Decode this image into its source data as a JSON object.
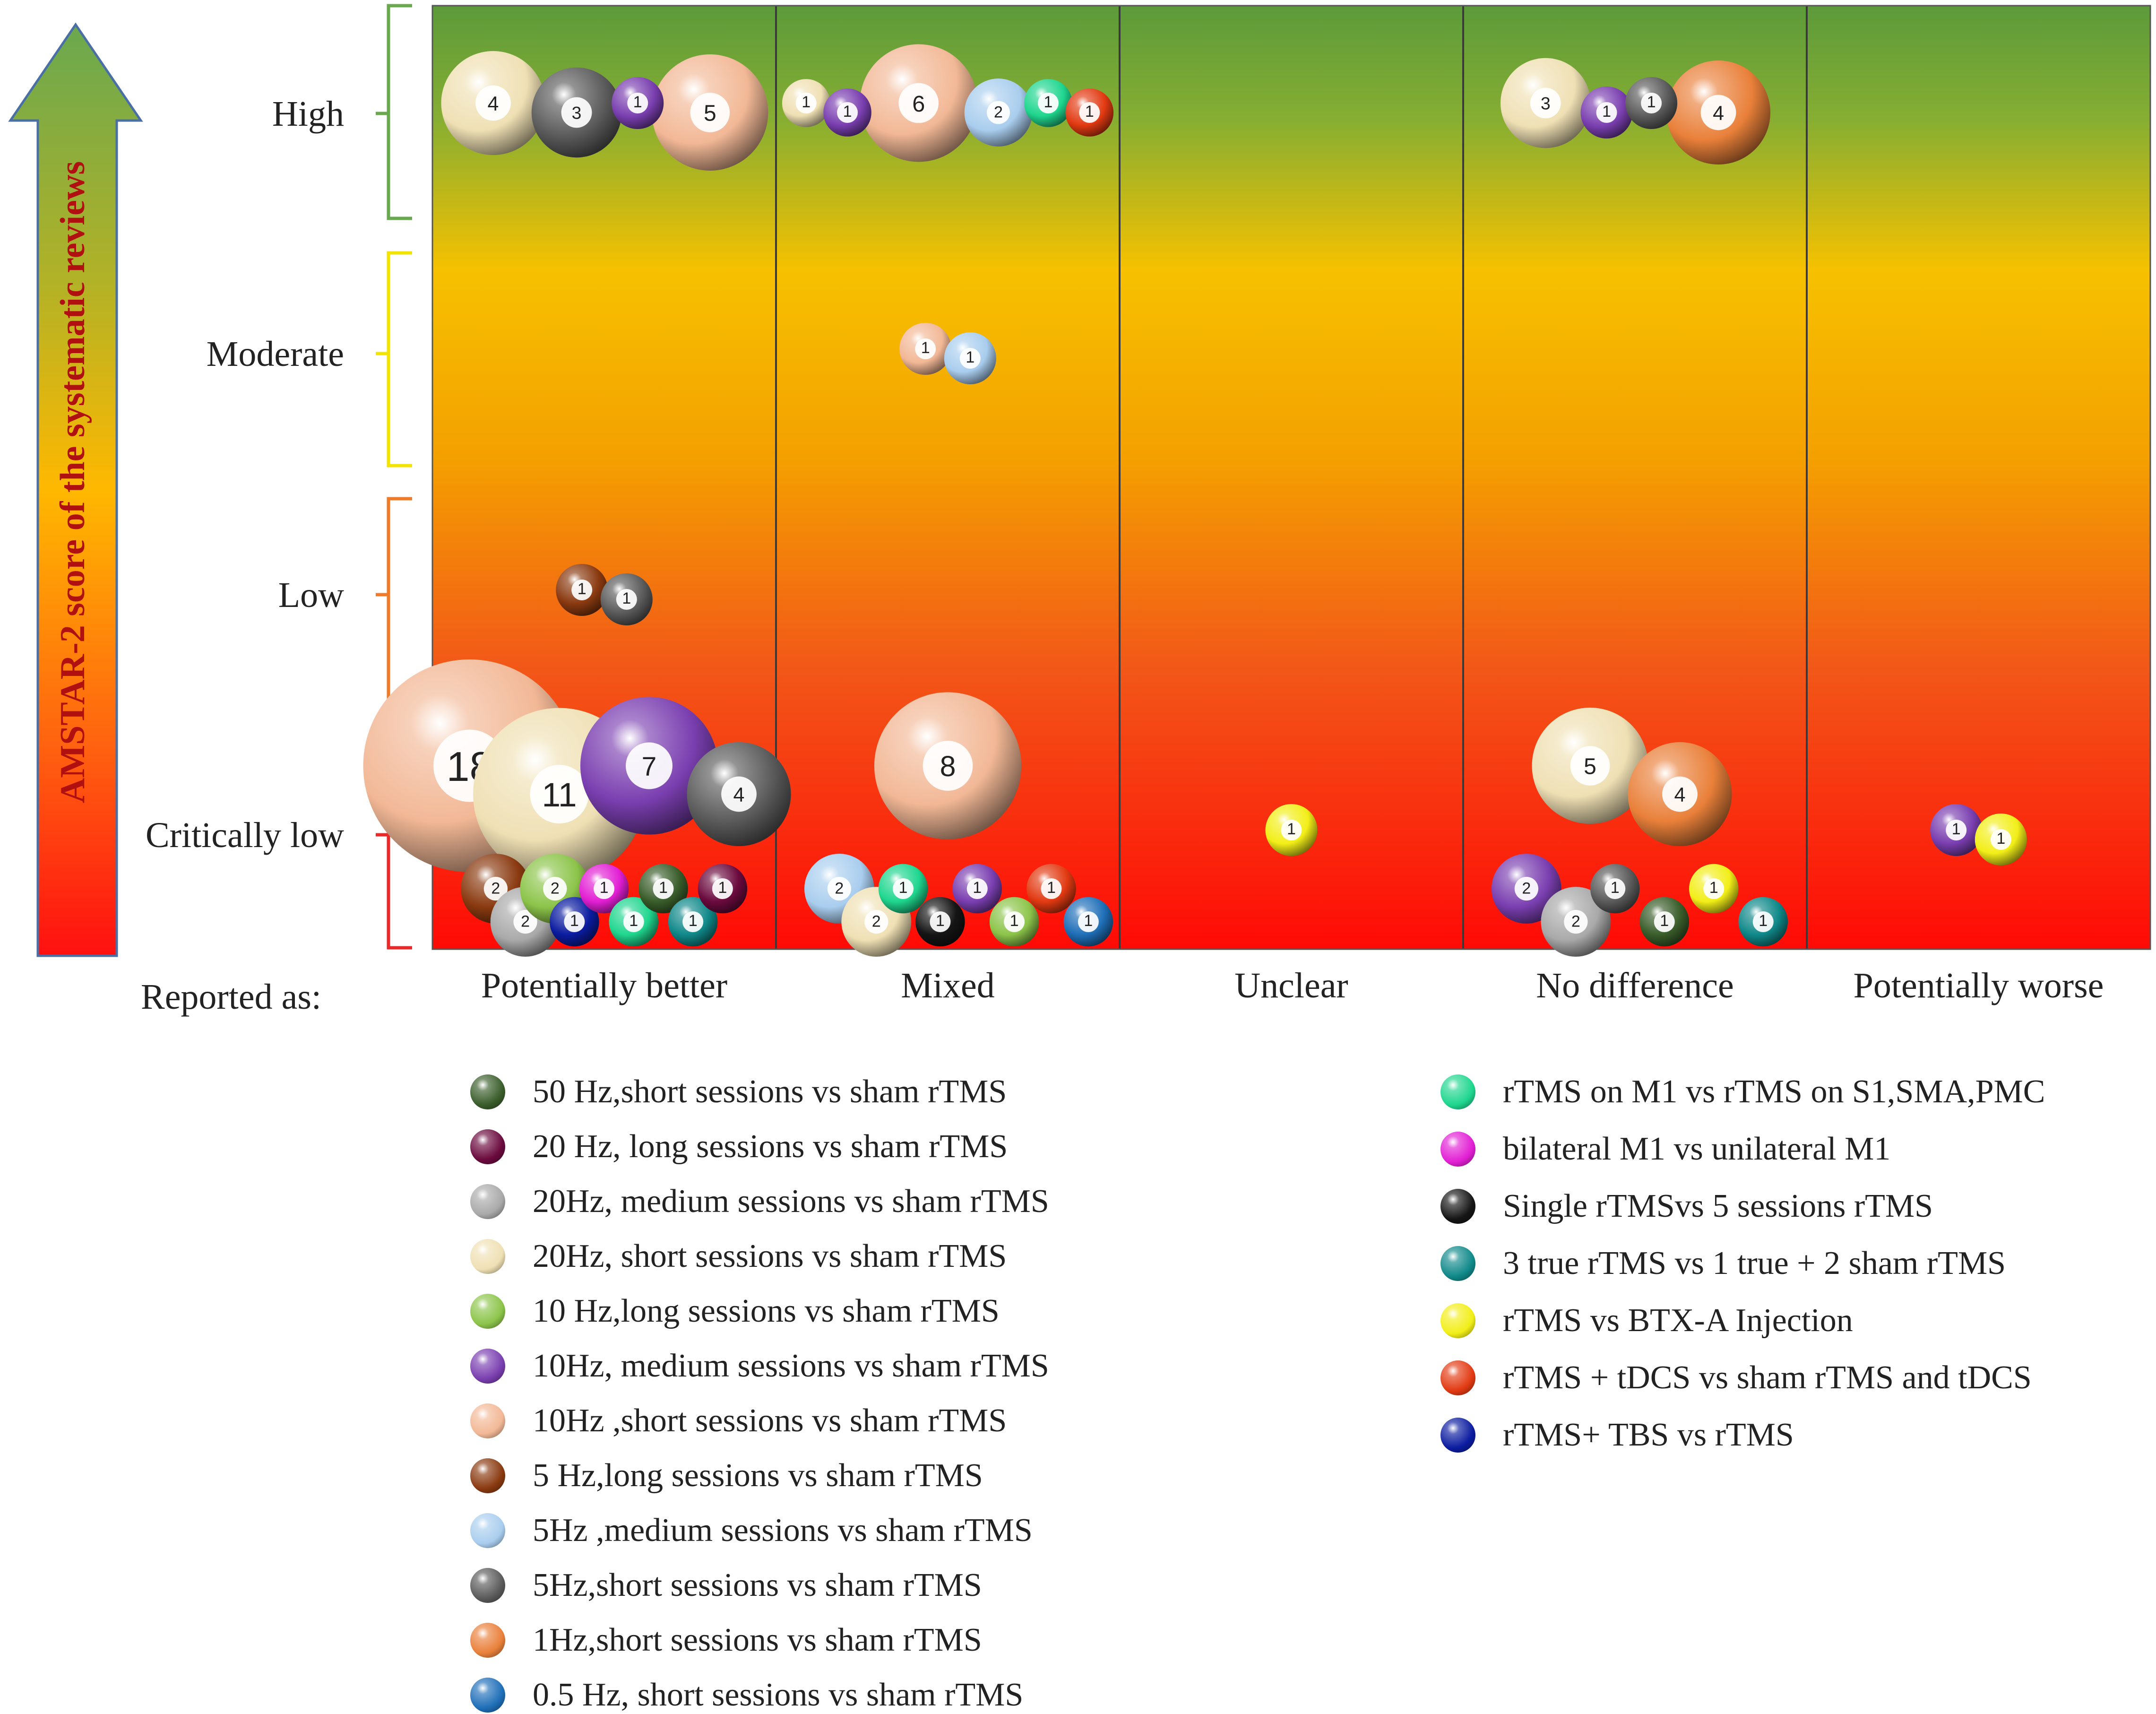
{
  "chart_data": {
    "type": "bubble",
    "y_title": "AMSTAR-2  score of the systematic reviews",
    "x_axis_prefix": "Reported as:",
    "columns": [
      "Potentially better",
      "Mixed",
      "Unclear",
      "No difference",
      "Potentially worse"
    ],
    "rows": [
      "High",
      "Moderate",
      "Low",
      "Critically low"
    ],
    "series": [
      {
        "name": "50 Hz,short sessions vs sham rTMS",
        "color": "#3a5e2b"
      },
      {
        "name": "20 Hz, long sessions  vs sham rTMS",
        "color": "#6b0a3e"
      },
      {
        "name": "20Hz, medium  sessions vs sham rTMS",
        "color": "#a9a9a9"
      },
      {
        "name": "20Hz, short  sessions vs sham rTMS",
        "color": "#efe0b4"
      },
      {
        "name": "10 Hz,long sessions vs sham rTMS",
        "color": "#8cc44a"
      },
      {
        "name": "10Hz, medium  sessions vs sham rTMS",
        "color": "#7a3fb0"
      },
      {
        "name": "10Hz ,short sessions vs sham rTMS",
        "color": "#f2b896"
      },
      {
        "name": "5 Hz,long sessions vs sham rTMS",
        "color": "#8a3a10"
      },
      {
        "name": "5Hz ,medium  sessions vs sham rTMS",
        "color": "#a9cdee"
      },
      {
        "name": "5Hz,short  sessions vs sham rTMS",
        "color": "#5b5b5b"
      },
      {
        "name": "1Hz,short  sessions vs sham rTMS",
        "color": "#e9803a"
      },
      {
        "name": "0.5 Hz, short  sessions vs sham rTMS",
        "color": "#1f6fb8"
      },
      {
        "name": "rTMS on M1 vs  rTMS on S1,SMA,PMC",
        "color": "#1fd68e"
      },
      {
        "name": "bilateral M1 vs unilateral M1",
        "color": "#e21fd4"
      },
      {
        "name": "Single  rTMSvs 5 sessions  rTMS",
        "color": "#151515"
      },
      {
        "name": "3 true rTMS vs 1 true + 2 sham rTMS",
        "color": "#10898a"
      },
      {
        "name": "rTMS vs BTX-A Injection",
        "color": "#f2ee18"
      },
      {
        "name": "rTMS + tDCS vs  sham rTMS and tDCS",
        "color": "#e23a12"
      },
      {
        "name": "rTMS+ TBS vs rTMS",
        "color": "#0b1ca0"
      }
    ],
    "bubbles": [
      {
        "column": "Potentially better",
        "row": "High",
        "series": 3,
        "value": 4
      },
      {
        "column": "Potentially better",
        "row": "High",
        "series": 9,
        "value": 3
      },
      {
        "column": "Potentially better",
        "row": "High",
        "series": 5,
        "value": 1
      },
      {
        "column": "Potentially better",
        "row": "High",
        "series": 6,
        "value": 5
      },
      {
        "column": "Mixed",
        "row": "High",
        "series": 3,
        "value": 1
      },
      {
        "column": "Mixed",
        "row": "High",
        "series": 5,
        "value": 1
      },
      {
        "column": "Mixed",
        "row": "High",
        "series": 6,
        "value": 6
      },
      {
        "column": "Mixed",
        "row": "High",
        "series": 8,
        "value": 2
      },
      {
        "column": "Mixed",
        "row": "High",
        "series": 12,
        "value": 1
      },
      {
        "column": "Mixed",
        "row": "High",
        "series": 17,
        "value": 1
      },
      {
        "column": "No difference",
        "row": "High",
        "series": 3,
        "value": 3
      },
      {
        "column": "No difference",
        "row": "High",
        "series": 5,
        "value": 1
      },
      {
        "column": "No difference",
        "row": "High",
        "series": 9,
        "value": 1
      },
      {
        "column": "No difference",
        "row": "High",
        "series": 10,
        "value": 4
      },
      {
        "column": "Mixed",
        "row": "Moderate",
        "series": 6,
        "value": 1
      },
      {
        "column": "Mixed",
        "row": "Moderate",
        "series": 8,
        "value": 1
      },
      {
        "column": "Potentially better",
        "row": "Low",
        "series": 7,
        "value": 1
      },
      {
        "column": "Potentially better",
        "row": "Low",
        "series": 9,
        "value": 1
      },
      {
        "column": "Potentially better",
        "row": "Critically low",
        "series": 3,
        "value": 11
      },
      {
        "column": "Potentially better",
        "row": "Critically low",
        "series": 6,
        "value": 18
      },
      {
        "column": "Potentially better",
        "row": "Critically low",
        "series": 5,
        "value": 7
      },
      {
        "column": "Potentially better",
        "row": "Critically low",
        "series": 9,
        "value": 4
      },
      {
        "column": "Potentially better",
        "row": "Critically low",
        "series": 7,
        "value": 2
      },
      {
        "column": "Potentially better",
        "row": "Critically low",
        "series": 18,
        "value": 1
      },
      {
        "column": "Potentially better",
        "row": "Critically low",
        "series": 13,
        "value": 1
      },
      {
        "column": "Potentially better",
        "row": "Critically low",
        "series": 12,
        "value": 1
      },
      {
        "column": "Potentially better",
        "row": "Critically low",
        "series": 0,
        "value": 1
      },
      {
        "column": "Potentially better",
        "row": "Critically low",
        "series": 2,
        "value": 2
      },
      {
        "column": "Potentially better",
        "row": "Critically low",
        "series": 15,
        "value": 1
      },
      {
        "column": "Potentially better",
        "row": "Critically low",
        "series": 1,
        "value": 1
      },
      {
        "column": "Potentially better",
        "row": "Critically low",
        "series": 4,
        "value": 2
      },
      {
        "column": "Mixed",
        "row": "Critically low",
        "series": 12,
        "value": 1
      },
      {
        "column": "Mixed",
        "row": "Critically low",
        "series": 8,
        "value": 2
      },
      {
        "column": "Mixed",
        "row": "Critically low",
        "series": 6,
        "value": 8
      },
      {
        "column": "Mixed",
        "row": "Critically low",
        "series": 14,
        "value": 1
      },
      {
        "column": "Mixed",
        "row": "Critically low",
        "series": 5,
        "value": 1
      },
      {
        "column": "Mixed",
        "row": "Critically low",
        "series": 4,
        "value": 1
      },
      {
        "column": "Mixed",
        "row": "Critically low",
        "series": 17,
        "value": 1
      },
      {
        "column": "Mixed",
        "row": "Critically low",
        "series": 3,
        "value": 2
      },
      {
        "column": "Mixed",
        "row": "Critically low",
        "series": 11,
        "value": 1
      },
      {
        "column": "Unclear",
        "row": "Critically low",
        "series": 16,
        "value": 1
      },
      {
        "column": "No difference",
        "row": "Critically low",
        "series": 10,
        "value": 4
      },
      {
        "column": "No difference",
        "row": "Critically low",
        "series": 3,
        "value": 5
      },
      {
        "column": "No difference",
        "row": "Critically low",
        "series": 9,
        "value": 1
      },
      {
        "column": "No difference",
        "row": "Critically low",
        "series": 0,
        "value": 1
      },
      {
        "column": "No difference",
        "row": "Critically low",
        "series": 16,
        "value": 1
      },
      {
        "column": "No difference",
        "row": "Critically low",
        "series": 5,
        "value": 2
      },
      {
        "column": "No difference",
        "row": "Critically low",
        "series": 2,
        "value": 2
      },
      {
        "column": "No difference",
        "row": "Critically low",
        "series": 15,
        "value": 1
      },
      {
        "column": "Potentially worse",
        "row": "Critically low",
        "series": 5,
        "value": 1
      },
      {
        "column": "Potentially worse",
        "row": "Critically low",
        "series": 16,
        "value": 1
      }
    ]
  }
}
